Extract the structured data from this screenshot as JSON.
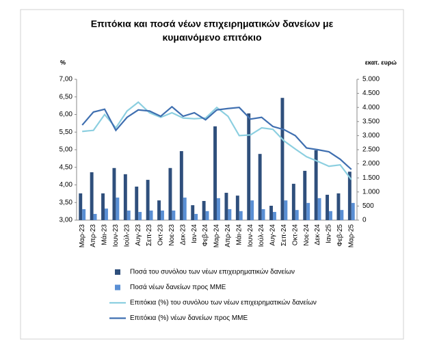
{
  "chart_data": {
    "type": "combo",
    "title": [
      "Επιτόκια και ποσά νέων επιχειρηματικών δανείων με",
      "κυμαινόμενο επιτόκιο"
    ],
    "y_label": "%",
    "y2_label": "εκατ. ευρώ",
    "categories": [
      "Μαρ-23",
      "Απρ-23",
      "Μάι-23",
      "Ιουν-23",
      "Ιούλ-23",
      "Αυγ-23",
      "Σεπ-23",
      "Οκτ-23",
      "Νοε-23",
      "Δεκ-23",
      "Ιαν-24",
      "Φεβ-24",
      "Μαρ-24",
      "Απρ-24",
      "Μάι-24",
      "Ιουν-24",
      "Ιούλ-24",
      "Αυγ-24",
      "Σεπ-24",
      "Οκτ-24",
      "Νοε-24",
      "Δεκ-24",
      "Ιαν-25",
      "Φεβ-25",
      "Μαρ-25"
    ],
    "ylim": [
      3,
      7
    ],
    "yticks": [
      {
        "value": 3,
        "label": "3,00"
      },
      {
        "value": 3.5,
        "label": "3,50"
      },
      {
        "value": 4,
        "label": "4,00"
      },
      {
        "value": 4.5,
        "label": "4,50"
      },
      {
        "value": 5,
        "label": "5,00"
      },
      {
        "value": 5.5,
        "label": "5,50"
      },
      {
        "value": 6,
        "label": "6,00"
      },
      {
        "value": 6.5,
        "label": "6,50"
      },
      {
        "value": 7,
        "label": "7,00"
      }
    ],
    "y2lim": [
      0,
      5000
    ],
    "y2ticks": [
      0,
      500,
      {
        "value": 1000,
        "label": "1.000"
      },
      {
        "value": 1500,
        "label": "1.500"
      },
      {
        "value": 2000,
        "label": "2.000"
      },
      {
        "value": 2500,
        "label": "2.500"
      },
      {
        "value": 3000,
        "label": "3.000"
      },
      {
        "value": 3500,
        "label": "3.500"
      },
      {
        "value": 4000,
        "label": "4.000"
      },
      {
        "value": 4500,
        "label": "4.500"
      },
      {
        "value": 5000,
        "label": "5.000"
      }
    ],
    "series": [
      {
        "name": "Ποσά του συνόλου των νέων επιχειρηματικών δανείων",
        "type": "bar",
        "axis": "y2",
        "color": "#2f4f7c",
        "values": [
          950,
          1700,
          950,
          1850,
          1630,
          1190,
          1430,
          700,
          1850,
          2450,
          530,
          680,
          3330,
          970,
          870,
          3790,
          2350,
          510,
          4340,
          1290,
          1750,
          2480,
          900,
          950,
          1720
        ]
      },
      {
        "name": "Ποσά νέων δανείων προς ΜΜΕ",
        "type": "bar",
        "axis": "y2",
        "color": "#5a8fd4",
        "values": [
          390,
          220,
          410,
          800,
          340,
          290,
          340,
          340,
          340,
          800,
          220,
          320,
          780,
          390,
          320,
          700,
          390,
          290,
          700,
          360,
          610,
          780,
          320,
          360,
          610
        ]
      },
      {
        "name": "Επιτόκια (%) του συνόλου των νέων επιχειρηματικών δανείων",
        "type": "line",
        "color": "#8ccfe0",
        "values": [
          5.52,
          5.55,
          6.0,
          5.62,
          6.1,
          6.35,
          6.05,
          5.92,
          6.05,
          5.9,
          5.88,
          5.9,
          6.2,
          5.95,
          5.4,
          5.42,
          5.62,
          5.58,
          5.25,
          5.02,
          4.8,
          4.67,
          4.53,
          4.57,
          4.15
        ]
      },
      {
        "name": "Επιτόκια (%) νέων δανείων προς ΜΜΕ",
        "type": "line",
        "color": "#3f6fb0",
        "values": [
          5.7,
          6.07,
          6.15,
          5.55,
          5.92,
          6.13,
          6.1,
          5.95,
          6.22,
          5.95,
          6.05,
          5.85,
          6.13,
          6.17,
          6.2,
          5.87,
          5.92,
          5.66,
          5.57,
          5.4,
          5.05,
          5.0,
          4.94,
          4.73,
          4.44
        ]
      }
    ]
  }
}
